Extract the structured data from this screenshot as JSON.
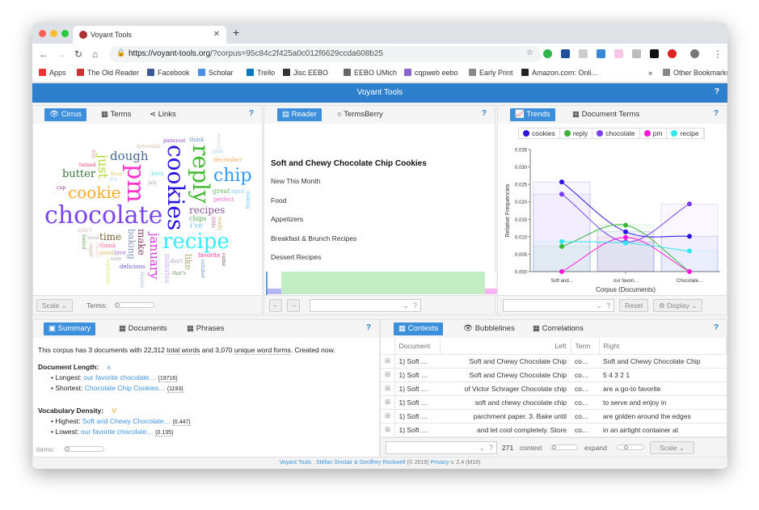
{
  "browser": {
    "tab_title": "Voyant Tools",
    "url_host": "https://voyant-tools.org",
    "url_rest": "/?corpus=95c84c2f425a0c012f6629ccda608b25",
    "bookmarks": [
      "Apps",
      "The Old Reader",
      "Facebook",
      "Scholar",
      "Trello",
      "Jisc EEBO",
      "EEBO UMich",
      "cqpweb eebo",
      "Early Print",
      "Amazon.com: Onli...",
      "Other Bookmarks"
    ],
    "bookmarks_more": "»"
  },
  "app": {
    "title": "Voyant Tools",
    "help": "?"
  },
  "cirrus": {
    "tabs": [
      "Cirrus",
      "Terms",
      "Links"
    ],
    "scale": "Scale",
    "terms_label": "Terms:",
    "words": [
      {
        "t": "chocolate",
        "c": "#7b45f0"
      },
      {
        "t": "cookies",
        "c": "#2a14e0"
      },
      {
        "t": "pm",
        "c": "#ff33cc"
      },
      {
        "t": "reply",
        "c": "#44bb33"
      },
      {
        "t": "recipe",
        "c": "#33eeff"
      },
      {
        "t": "cookie",
        "c": "#ffaa22"
      },
      {
        "t": "chip",
        "c": "#3399ff"
      },
      {
        "t": "dough",
        "c": "#446699"
      },
      {
        "t": "just",
        "c": "#aadd33"
      },
      {
        "t": "butter",
        "c": "#337733"
      },
      {
        "t": "recipes",
        "c": "#885599"
      },
      {
        "t": "january",
        "c": "#dd33dd"
      },
      {
        "t": "make",
        "c": "#884466"
      },
      {
        "t": "time",
        "c": "#776633"
      },
      {
        "t": "baking",
        "c": "#8899bb"
      },
      {
        "t": "like",
        "c": "#aaaa77"
      },
      {
        "t": "minutes",
        "c": "#ccaaff"
      },
      {
        "t": "chips",
        "c": "#55aa55"
      },
      {
        "t": "i've",
        "c": "#66ccee"
      },
      {
        "t": "great",
        "c": "#66bb66"
      },
      {
        "t": "perfect",
        "c": "#ff66cc"
      },
      {
        "t": "april",
        "c": "#88ccff"
      },
      {
        "t": "december",
        "c": "#ffaa66"
      },
      {
        "t": "best",
        "c": "#66ddee"
      },
      {
        "t": "think",
        "c": "#6699cc"
      },
      {
        "t": "june",
        "c": "#aaccee"
      },
      {
        "t": "pinterest",
        "c": "#8844cc"
      },
      {
        "t": "november",
        "c": "#ccbbaa"
      },
      {
        "t": "turned",
        "c": "#ee3366"
      },
      {
        "t": "cup",
        "c": "#883388"
      },
      {
        "t": "flour",
        "c": "#ddcc66"
      },
      {
        "t": "deb",
        "c": "#ee9999"
      },
      {
        "t": "didn't",
        "c": "#ddbbbb"
      },
      {
        "t": "it's",
        "c": "#aaccff"
      },
      {
        "t": "used",
        "c": "#bbaaaa"
      },
      {
        "t": "thank",
        "c": "#ff6699"
      },
      {
        "t": "love",
        "c": "#aa66cc"
      },
      {
        "t": "good",
        "c": "#ddbb66"
      },
      {
        "t": "sure",
        "c": "#aaaaaa"
      },
      {
        "t": "delicious",
        "c": "#6655cc"
      },
      {
        "t": "favorite",
        "c": "#ff3399"
      },
      {
        "t": "don't",
        "c": "#9999bb"
      },
      {
        "t": "that's",
        "c": "#669966"
      },
      {
        "t": "july",
        "c": "#99aaaa"
      },
      {
        "t": "baked",
        "c": "#66aa66"
      },
      {
        "t": "chewy",
        "c": "#ffcccc"
      },
      {
        "t": "sugar",
        "c": "#ccaa99"
      },
      {
        "t": "september",
        "c": "#ccee66"
      },
      {
        "t": "thanks",
        "c": "#aabbdd"
      },
      {
        "t": "october",
        "c": "#6688cc"
      },
      {
        "t": "making",
        "c": "#66ccff"
      },
      {
        "t": "march",
        "c": "#ddcccc"
      },
      {
        "t": "little",
        "c": "#cc6699"
      },
      {
        "t": "really",
        "c": "#ccaa66"
      },
      {
        "t": "came",
        "c": "#775544"
      }
    ]
  },
  "reader": {
    "tabs": [
      "Reader",
      "TermsBerry"
    ],
    "title": "Soft and Chewy Chocolate Chip Cookies",
    "lines": [
      "New This Month",
      "Food",
      "Appetizers",
      "Breakfast & Brunch Recipes",
      "Dessert Recipes"
    ],
    "help": "?"
  },
  "trends": {
    "tabs": [
      "Trends",
      "Document Terms"
    ],
    "reset": "Reset",
    "display": "Display",
    "help": "?"
  },
  "chart_data": {
    "type": "line",
    "xlabel": "Corpus (Documents)",
    "ylabel": "Relative Frequencies",
    "categories": [
      "Soft and...",
      "our favori...",
      "Chocolate..."
    ],
    "ylim": [
      0,
      0.035
    ],
    "yticks": [
      "0.000",
      "0.005",
      "0.010",
      "0.015",
      "0.020",
      "0.025",
      "0.030",
      "0.035"
    ],
    "legend": "top",
    "series": [
      {
        "name": "cookies",
        "color": "#2a14e0",
        "values": [
          0.0257,
          0.0114,
          0.0101
        ]
      },
      {
        "name": "reply",
        "color": "#3cb43c",
        "values": [
          0.0072,
          0.0133,
          0.0
        ]
      },
      {
        "name": "chocolate",
        "color": "#7a3ff0",
        "values": [
          0.0222,
          0.0085,
          0.0194
        ]
      },
      {
        "name": "pm",
        "color": "#ff19d6",
        "values": [
          0.0,
          0.0098,
          0.0
        ]
      },
      {
        "name": "recipe",
        "color": "#33e6f0",
        "values": [
          0.0086,
          0.0082,
          0.0059
        ]
      }
    ]
  },
  "summary": {
    "tabs": [
      "Summary",
      "Documents",
      "Phrases"
    ],
    "intro": {
      "a": "This corpus has 3 documents with 22,312 ",
      "b": "total words",
      "c": " and 3,070 ",
      "d": "unique word forms",
      "e": ". Created now."
    },
    "length_label": "Document Length:",
    "longest_label": "Longest:",
    "longest": "our favorite chocolate…",
    "longest_val": "(19716)",
    "shortest_label": "Shortest:",
    "shortest": "Chocolate Chip Cookies…",
    "shortest_val": "(1193)",
    "density_label": "Vocabulary Density:",
    "highest_label": "Highest:",
    "highest": "Soft and Chewy Chocolate…",
    "highest_val": "(0.447)",
    "lowest_label": "Lowest:",
    "lowest": "our favorite chocolate…",
    "lowest_val": "(0.135)",
    "items_label": "items:"
  },
  "contexts": {
    "tabs": [
      "Contexts",
      "Bubblelines",
      "Correlations"
    ],
    "columns": [
      "Document",
      "Left",
      "Term",
      "Right"
    ],
    "rows": [
      [
        "1) Soft …",
        "Soft and Chewy Chocolate Chip",
        "co…",
        "Soft and Chewy Chocolate Chip"
      ],
      [
        "1) Soft …",
        "Soft and Chewy Chocolate Chip",
        "co…",
        "5 4 3 2 1"
      ],
      [
        "1) Soft …",
        "of Victor Schrager Chocolate chip",
        "co…",
        "are a go-to favorite"
      ],
      [
        "1) Soft …",
        "soft and chewy chocolate chip",
        "co…",
        "to serve and enjoy in"
      ],
      [
        "1) Soft …",
        "parchment paper. 3. Bake until",
        "co…",
        "are golden around the edges"
      ],
      [
        "1) Soft …",
        "and let cool completely. Store",
        "co…",
        "in an airtight container at"
      ]
    ],
    "count": "271",
    "context_label": "context",
    "expand_label": "expand",
    "scale": "Scale"
  },
  "footer": {
    "a": "Voyant Tools",
    "b": " , ",
    "c": "Stéfan Sinclair & Geoffrey Rockwell",
    "d": " (© 2019) ",
    "e": "Privacy",
    "f": " v. 2.4 (M18)"
  }
}
